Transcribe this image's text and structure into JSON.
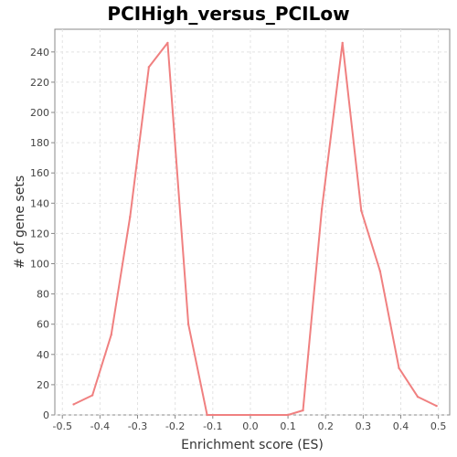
{
  "chart_data": {
    "type": "line",
    "title": "PCIHigh_versus_PCILow",
    "xlabel": "Enrichment score (ES)",
    "ylabel": "# of gene sets",
    "xlim": [
      -0.52,
      0.53
    ],
    "ylim": [
      0,
      255
    ],
    "x_ticks": [
      -0.5,
      -0.4,
      -0.3,
      -0.2,
      -0.1,
      0.0,
      0.1,
      0.2,
      0.3,
      0.4,
      0.5
    ],
    "x_tick_labels": [
      "-0.5",
      "-0.4",
      "-0.3",
      "-0.2",
      "-0.1",
      "0.0",
      "0.1",
      "0.2",
      "0.3",
      "0.4",
      "0.5"
    ],
    "y_ticks": [
      0,
      20,
      40,
      60,
      80,
      100,
      120,
      140,
      160,
      180,
      200,
      220,
      240
    ],
    "y_tick_labels": [
      "0",
      "20",
      "40",
      "60",
      "80",
      "100",
      "120",
      "140",
      "160",
      "180",
      "200",
      "220",
      "240"
    ],
    "grid": true,
    "color": "#f08080",
    "series": [
      {
        "x": [
          -0.47,
          -0.42,
          -0.37,
          -0.32,
          -0.27,
          -0.22,
          -0.165,
          -0.115,
          0.1,
          0.14,
          0.19,
          0.245,
          0.295,
          0.345,
          0.395,
          0.445,
          0.495
        ],
        "values": [
          7,
          13,
          53,
          131,
          230,
          246,
          60,
          0,
          0,
          3,
          136,
          246,
          135,
          95,
          31,
          12,
          6
        ]
      }
    ]
  }
}
